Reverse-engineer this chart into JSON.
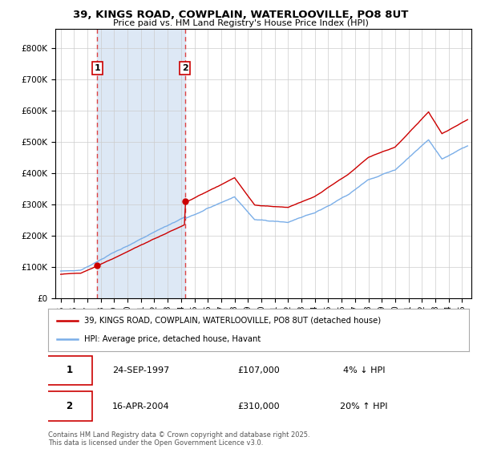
{
  "title": "39, KINGS ROAD, COWPLAIN, WATERLOOVILLE, PO8 8UT",
  "subtitle": "Price paid vs. HM Land Registry's House Price Index (HPI)",
  "legend_line1": "39, KINGS ROAD, COWPLAIN, WATERLOOVILLE, PO8 8UT (detached house)",
  "legend_line2": "HPI: Average price, detached house, Havant",
  "annotation1_date": "24-SEP-1997",
  "annotation1_price": "£107,000",
  "annotation1_hpi": "4% ↓ HPI",
  "annotation2_date": "16-APR-2004",
  "annotation2_price": "£310,000",
  "annotation2_hpi": "20% ↑ HPI",
  "footer": "Contains HM Land Registry data © Crown copyright and database right 2025.\nThis data is licensed under the Open Government Licence v3.0.",
  "sale1_x": 1997.73,
  "sale1_y": 107000,
  "sale2_x": 2004.29,
  "sale2_y": 310000,
  "hpi_color": "#7aaee8",
  "price_color": "#cc0000",
  "vline_color": "#dd4444",
  "shade_color": "#dde8f5",
  "ylabel_ticks": [
    "£0",
    "£100K",
    "£200K",
    "£300K",
    "£400K",
    "£500K",
    "£600K",
    "£700K",
    "£800K"
  ],
  "ytick_values": [
    0,
    100000,
    200000,
    300000,
    400000,
    500000,
    600000,
    700000,
    800000
  ],
  "ylim": [
    0,
    860000
  ],
  "xlim_start": 1994.6,
  "xlim_end": 2025.7
}
